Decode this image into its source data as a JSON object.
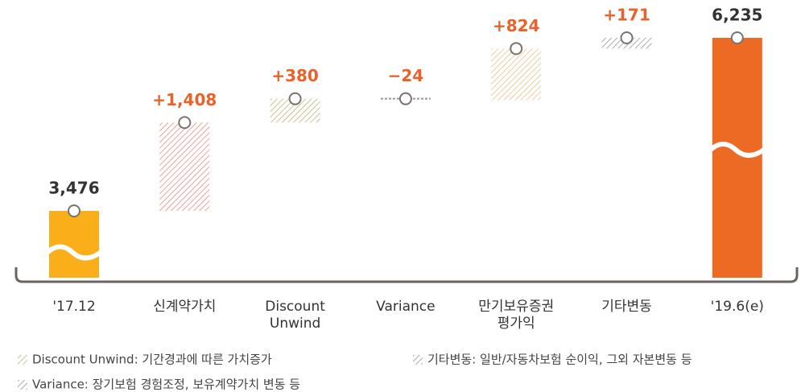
{
  "chart_data": {
    "type": "waterfall",
    "categories": [
      [
        "'17.12"
      ],
      [
        "신계약가치"
      ],
      [
        "Discount",
        "Unwind"
      ],
      [
        "Variance"
      ],
      [
        "만기보유증권",
        "평가익"
      ],
      [
        "기타변동"
      ],
      [
        "'19.6(e)"
      ]
    ],
    "values": [
      3476,
      1408,
      380,
      -24,
      824,
      171,
      6235
    ],
    "value_labels": [
      "3,476",
      "+1,408",
      "+380",
      "−24",
      "+824",
      "+171",
      "6,235"
    ],
    "kinds": [
      "total",
      "change",
      "change",
      "change",
      "change",
      "change",
      "total"
    ],
    "colors": [
      "#f9ae1a",
      "#e58e7c",
      "#bdb574",
      "#a08aa8",
      "#eebf80",
      "#9e9696",
      "#ed6a24"
    ],
    "notes": [
      {
        "text": "Discount Unwind: 기간경과에 따른 가치증가",
        "color": "#bdb574"
      },
      {
        "text": "기타변동: 일반/자동차보험 순이익, 그외 자본변동 등",
        "color": "#9e9696"
      },
      {
        "text": "Variance: 장기보험 경험조정, 보유계약가치 변동 등",
        "color": "#a08aa8"
      }
    ]
  }
}
